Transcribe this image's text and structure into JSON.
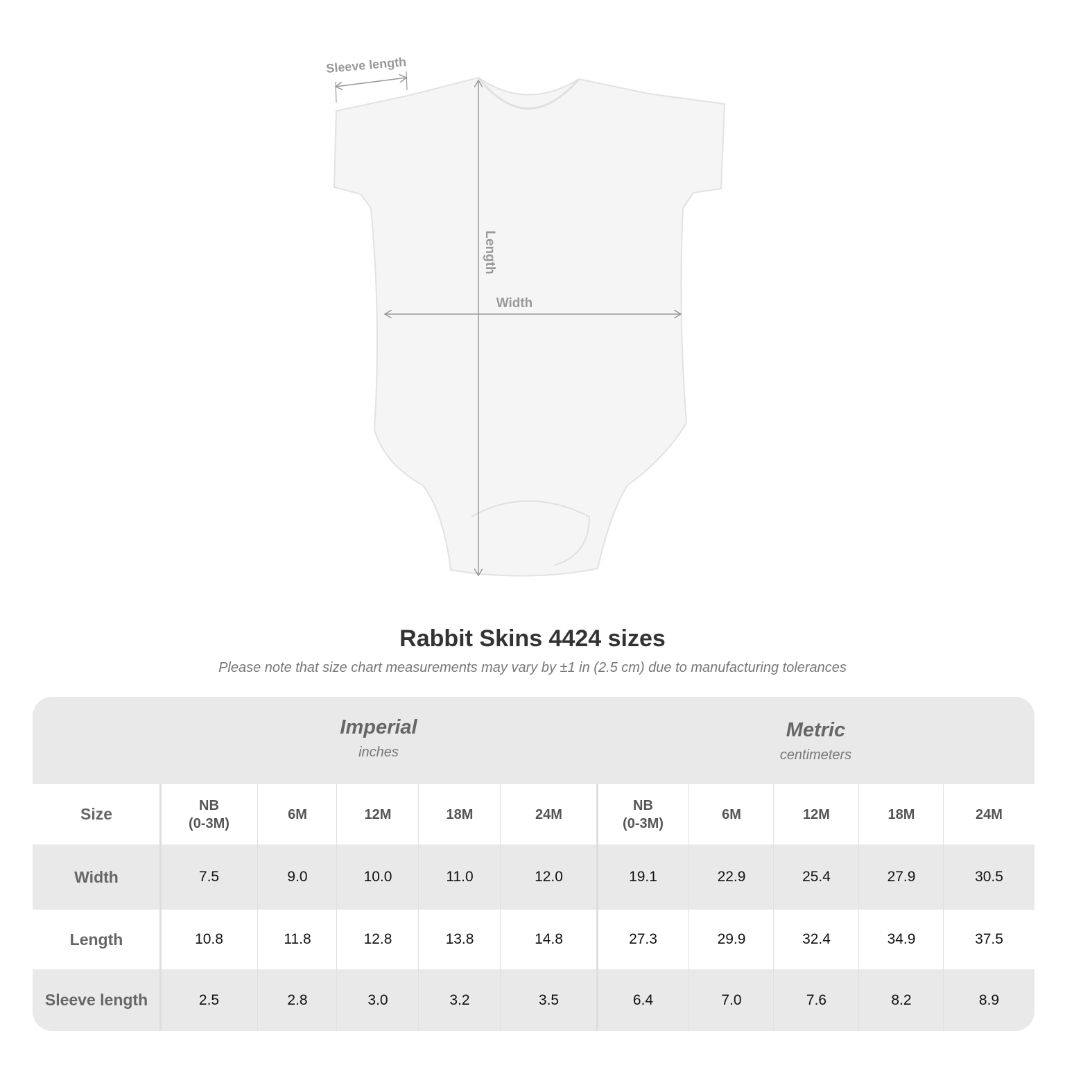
{
  "diagram": {
    "labels": {
      "sleeve": "Sleeve length",
      "length": "Length",
      "width": "Width"
    }
  },
  "title": "Rabbit Skins 4424 sizes",
  "subtitle": "Please note that size chart measurements may vary by ±1 in (2.5 cm) due to manufacturing tolerances",
  "table": {
    "imperial": {
      "name": "Imperial",
      "unit": "inches"
    },
    "metric": {
      "name": "Metric",
      "unit": "centimeters"
    },
    "size_label": "Size",
    "sizes": [
      "NB\n(0-3M)",
      "6M",
      "12M",
      "18M",
      "24M"
    ],
    "rows": [
      {
        "label": "Width",
        "imperial": [
          "7.5",
          "9.0",
          "10.0",
          "11.0",
          "12.0"
        ],
        "metric": [
          "19.1",
          "22.9",
          "25.4",
          "27.9",
          "30.5"
        ]
      },
      {
        "label": "Length",
        "imperial": [
          "10.8",
          "11.8",
          "12.8",
          "13.8",
          "14.8"
        ],
        "metric": [
          "27.3",
          "29.9",
          "32.4",
          "34.9",
          "37.5"
        ]
      },
      {
        "label": "Sleeve length",
        "imperial": [
          "2.5",
          "2.8",
          "3.0",
          "3.2",
          "3.5"
        ],
        "metric": [
          "6.4",
          "7.0",
          "7.6",
          "8.2",
          "8.9"
        ]
      }
    ]
  },
  "colors": {
    "band": "#e9e9e9",
    "label": "#666666",
    "title": "#333333"
  }
}
